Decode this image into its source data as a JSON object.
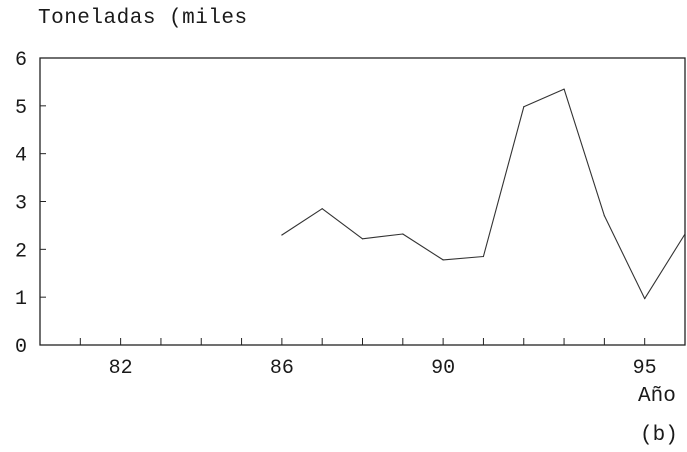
{
  "chart_data": {
    "type": "line",
    "ylabel": "Toneladas (miles",
    "xlabel": "Año",
    "panel_label": "(b)",
    "xlim": [
      80,
      96
    ],
    "ylim": [
      0,
      6
    ],
    "x_ticks": [
      82,
      86,
      90,
      95
    ],
    "y_ticks": [
      0,
      1,
      2,
      3,
      4,
      5,
      6
    ],
    "x_minor_ticks": [
      81,
      82,
      83,
      84,
      85,
      86,
      87,
      88,
      89,
      90,
      91,
      92,
      93,
      94,
      95
    ],
    "grid": false,
    "legend": "none",
    "colors": {
      "line": "#333333",
      "axis": "#222222"
    },
    "series": [
      {
        "x": [
          86,
          87,
          88,
          89,
          90,
          91,
          92,
          93,
          94,
          95,
          96
        ],
        "y": [
          2.3,
          2.85,
          2.22,
          2.32,
          1.78,
          1.85,
          4.98,
          5.35,
          2.7,
          0.97,
          2.32
        ]
      }
    ]
  }
}
